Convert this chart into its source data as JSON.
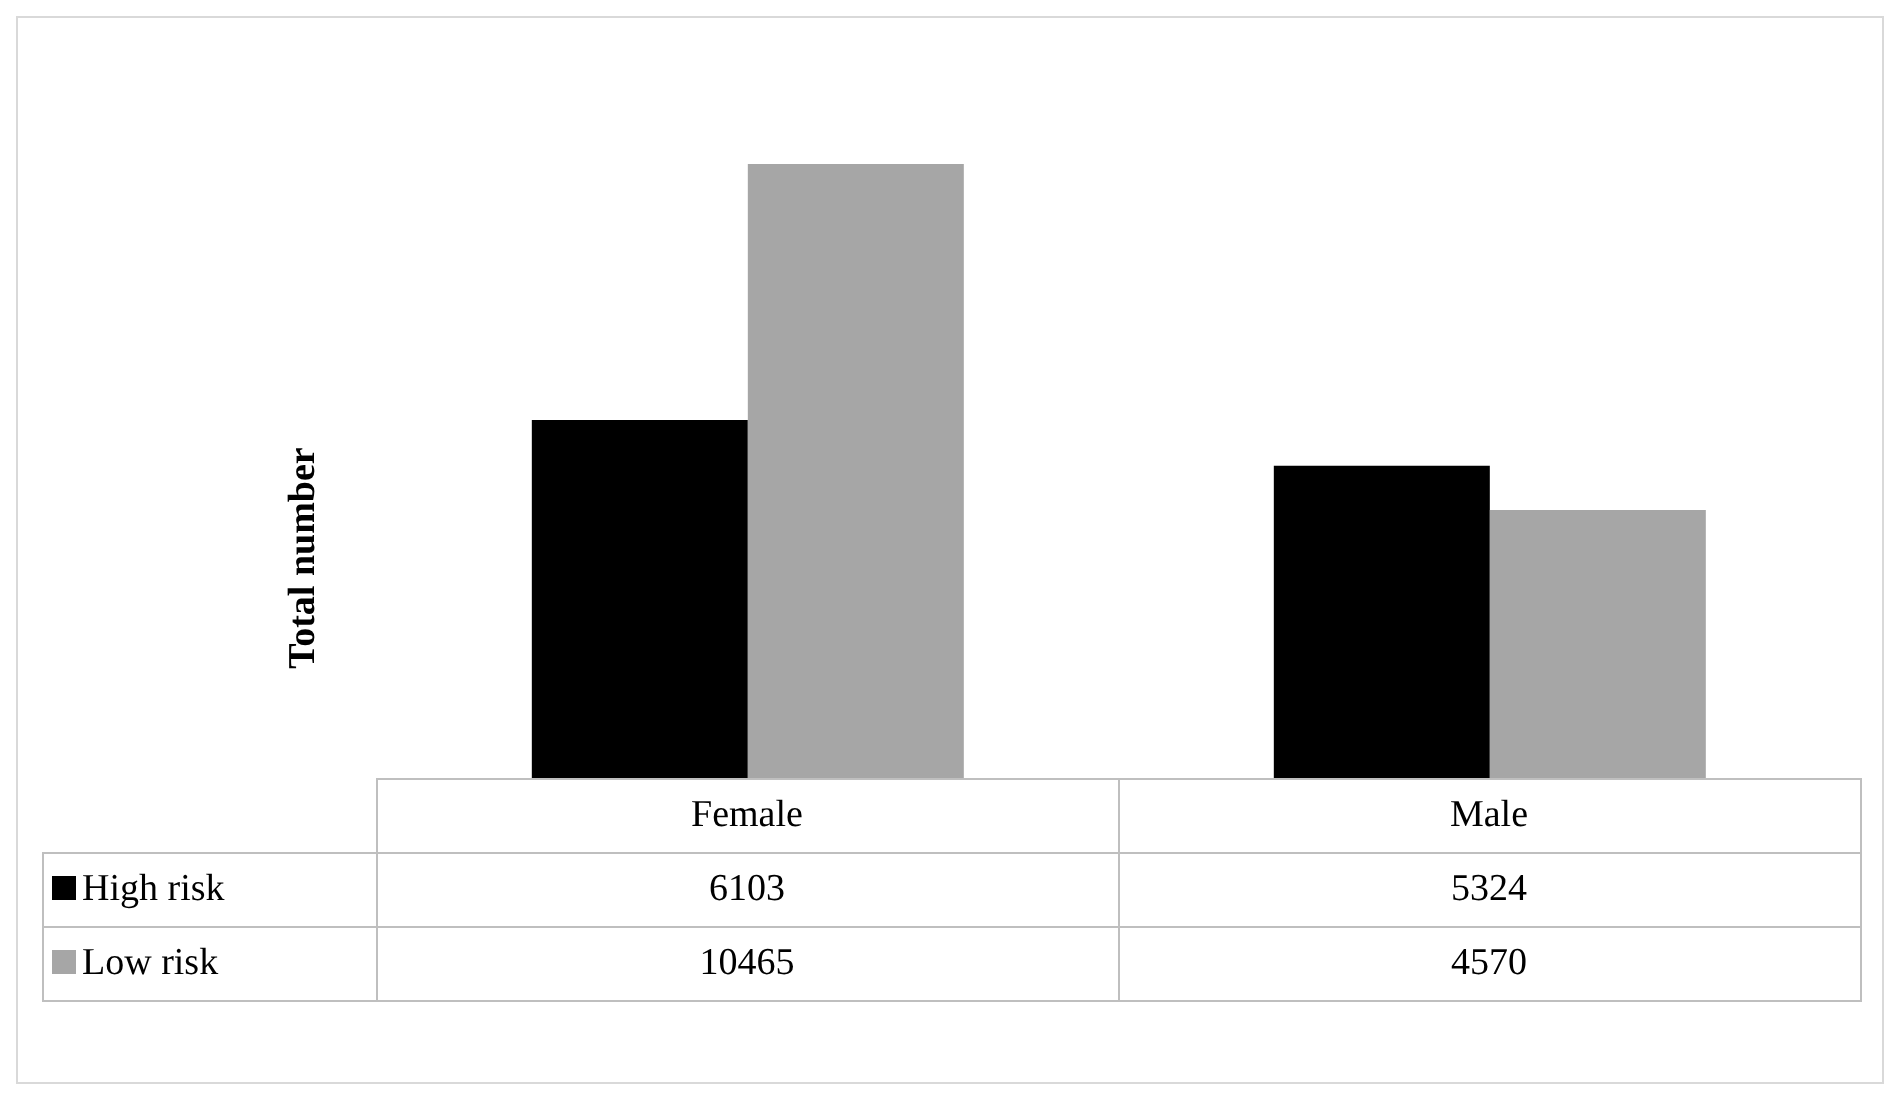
{
  "chart_data": {
    "type": "bar",
    "ylabel": "Total number",
    "categories": [
      "Female",
      "Male"
    ],
    "series": [
      {
        "name": "High risk",
        "color": "#000000",
        "values": [
          6103,
          5324
        ]
      },
      {
        "name": "Low risk",
        "color": "#a6a6a6",
        "values": [
          10465,
          4570
        ]
      }
    ],
    "tick_labels": "x",
    "grid": false,
    "legend": "bottom left",
    "data_labels": true
  }
}
